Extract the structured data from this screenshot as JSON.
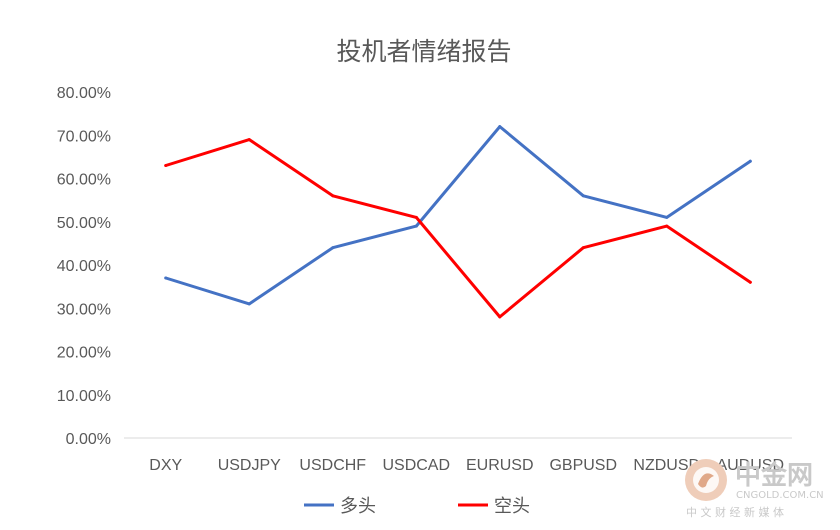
{
  "chart_data": {
    "type": "line",
    "title": "投机者情绪报告",
    "categories": [
      "DXY",
      "USDJPY",
      "USDCHF",
      "USDCAD",
      "EURUSD",
      "GBPUSD",
      "NZDUSD",
      "AUDUSD"
    ],
    "ylim": [
      0,
      0.8
    ],
    "yticks": [
      0,
      0.1,
      0.2,
      0.3,
      0.4,
      0.5,
      0.6,
      0.7,
      0.8
    ],
    "ytick_labels": [
      "0.00%",
      "10.00%",
      "20.00%",
      "30.00%",
      "40.00%",
      "50.00%",
      "60.00%",
      "70.00%",
      "80.00%"
    ],
    "grid": false,
    "legend_position": "bottom",
    "series": [
      {
        "name": "多头",
        "color": "#4472C4",
        "values": [
          0.37,
          0.31,
          0.44,
          0.49,
          0.72,
          0.56,
          0.51,
          0.64
        ]
      },
      {
        "name": "空头",
        "color": "#FF0000",
        "values": [
          0.63,
          0.69,
          0.56,
          0.51,
          0.28,
          0.44,
          0.49,
          0.36
        ]
      }
    ]
  },
  "watermark": {
    "brand": "中金网",
    "url": "CNGOLD.COM.CN",
    "slogan": "中 文 财 经 新 媒 体",
    "color": "#c9c9c9",
    "logo_color": "#e8b9a0"
  }
}
